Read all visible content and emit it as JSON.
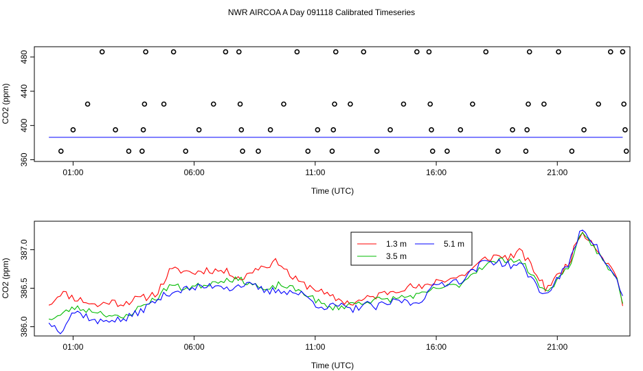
{
  "title": "NWR AIRCOA A  Day 091118  Calibrated Timeseries",
  "chart_data": [
    {
      "type": "scatter",
      "xlabel": "Time (UTC)",
      "ylabel": "CO2 (ppm)",
      "xlim": [
        -0.6,
        24.0
      ],
      "ylim": [
        358,
        492
      ],
      "x_ticks": [
        1,
        6,
        11,
        16,
        21
      ],
      "x_tick_labels": [
        "01:00",
        "06:00",
        "11:00",
        "16:00",
        "21:00"
      ],
      "y_ticks": [
        360,
        400,
        440,
        480
      ],
      "y_tick_labels": [
        "360",
        "400",
        "440",
        "480"
      ],
      "grid": false,
      "series": [
        {
          "color": "#0000ff",
          "style": "line",
          "x": [
            0,
            23.7
          ],
          "y": [
            386.2,
            386.2
          ]
        },
        {
          "color": "#000000",
          "style": "open-circle",
          "points": [
            [
              0.5,
              370
            ],
            [
              1.0,
              395
            ],
            [
              1.6,
              425
            ],
            [
              2.2,
              486
            ],
            [
              2.75,
              395
            ],
            [
              3.3,
              370
            ],
            [
              3.85,
              370
            ],
            [
              3.9,
              395
            ],
            [
              3.95,
              425
            ],
            [
              4.0,
              486
            ],
            [
              4.75,
              425
            ],
            [
              5.15,
              486
            ],
            [
              5.65,
              370
            ],
            [
              6.2,
              395
            ],
            [
              6.8,
              425
            ],
            [
              7.3,
              486
            ],
            [
              7.85,
              486
            ],
            [
              7.9,
              425
            ],
            [
              7.95,
              395
            ],
            [
              8.0,
              370
            ],
            [
              8.65,
              370
            ],
            [
              9.15,
              395
            ],
            [
              9.7,
              425
            ],
            [
              10.25,
              486
            ],
            [
              10.7,
              370
            ],
            [
              11.1,
              395
            ],
            [
              11.7,
              370
            ],
            [
              11.75,
              395
            ],
            [
              11.8,
              425
            ],
            [
              11.85,
              486
            ],
            [
              12.45,
              425
            ],
            [
              13.0,
              486
            ],
            [
              13.55,
              370
            ],
            [
              14.1,
              395
            ],
            [
              14.65,
              425
            ],
            [
              15.2,
              486
            ],
            [
              15.7,
              486
            ],
            [
              15.75,
              425
            ],
            [
              15.8,
              395
            ],
            [
              15.85,
              370
            ],
            [
              16.45,
              370
            ],
            [
              17.0,
              395
            ],
            [
              17.5,
              425
            ],
            [
              18.05,
              486
            ],
            [
              18.55,
              370
            ],
            [
              19.15,
              395
            ],
            [
              19.7,
              370
            ],
            [
              19.75,
              395
            ],
            [
              19.8,
              425
            ],
            [
              19.85,
              486
            ],
            [
              20.45,
              425
            ],
            [
              21.05,
              486
            ],
            [
              21.6,
              370
            ],
            [
              22.1,
              395
            ],
            [
              22.7,
              425
            ],
            [
              23.2,
              486
            ],
            [
              23.7,
              486
            ],
            [
              23.75,
              425
            ],
            [
              23.8,
              395
            ],
            [
              23.85,
              370
            ]
          ]
        }
      ]
    },
    {
      "type": "line",
      "xlabel": "Time (UTC)",
      "ylabel": "CO2 (ppm)",
      "xlim": [
        -0.6,
        24.0
      ],
      "ylim": [
        385.88,
        387.37
      ],
      "x_ticks": [
        1,
        6,
        11,
        16,
        21
      ],
      "x_tick_labels": [
        "01:00",
        "06:00",
        "11:00",
        "16:00",
        "21:00"
      ],
      "y_ticks": [
        386.0,
        386.5,
        387.0
      ],
      "y_tick_labels": [
        "386.0",
        "386.5",
        "387.0"
      ],
      "grid": false,
      "legend": "top-center",
      "series": [
        {
          "name": "1.3 m",
          "color": "#ff0000",
          "anchors": [
            [
              0,
              386.28
            ],
            [
              0.5,
              386.45
            ],
            [
              1.0,
              386.38
            ],
            [
              1.5,
              386.33
            ],
            [
              2.0,
              386.27
            ],
            [
              2.5,
              386.33
            ],
            [
              3.0,
              386.3
            ],
            [
              3.5,
              386.35
            ],
            [
              4.0,
              386.38
            ],
            [
              4.5,
              386.45
            ],
            [
              5.0,
              386.73
            ],
            [
              5.5,
              386.73
            ],
            [
              6.0,
              386.7
            ],
            [
              6.5,
              386.74
            ],
            [
              7.0,
              386.73
            ],
            [
              7.5,
              386.7
            ],
            [
              8.0,
              386.62
            ],
            [
              8.5,
              386.75
            ],
            [
              9.0,
              386.8
            ],
            [
              9.5,
              386.85
            ],
            [
              10.0,
              386.65
            ],
            [
              10.5,
              386.55
            ],
            [
              11.0,
              386.5
            ],
            [
              11.5,
              386.4
            ],
            [
              12.0,
              386.35
            ],
            [
              12.5,
              386.3
            ],
            [
              13.0,
              386.35
            ],
            [
              13.5,
              386.4
            ],
            [
              14.0,
              386.45
            ],
            [
              14.5,
              386.5
            ],
            [
              15.0,
              386.52
            ],
            [
              15.5,
              386.5
            ],
            [
              16.0,
              386.6
            ],
            [
              16.5,
              386.62
            ],
            [
              17.0,
              386.65
            ],
            [
              17.5,
              386.75
            ],
            [
              18.0,
              386.88
            ],
            [
              18.5,
              386.92
            ],
            [
              19.0,
              386.9
            ],
            [
              19.5,
              386.98
            ],
            [
              20.0,
              386.75
            ],
            [
              20.5,
              386.5
            ],
            [
              21.0,
              386.65
            ],
            [
              21.5,
              386.85
            ],
            [
              22.0,
              387.25
            ],
            [
              22.5,
              387.08
            ],
            [
              23.0,
              386.85
            ],
            [
              23.5,
              386.65
            ],
            [
              23.7,
              386.27
            ]
          ],
          "noise": 0.05,
          "seed": 11
        },
        {
          "name": "3.5 m",
          "color": "#00bb00",
          "anchors": [
            [
              0,
              386.1
            ],
            [
              0.5,
              386.15
            ],
            [
              1.0,
              386.25
            ],
            [
              1.5,
              386.22
            ],
            [
              2.0,
              386.2
            ],
            [
              2.5,
              386.15
            ],
            [
              3.0,
              386.1
            ],
            [
              3.5,
              386.2
            ],
            [
              4.0,
              386.3
            ],
            [
              4.5,
              386.38
            ],
            [
              5.0,
              386.55
            ],
            [
              5.5,
              386.5
            ],
            [
              6.0,
              386.52
            ],
            [
              6.5,
              386.55
            ],
            [
              7.0,
              386.6
            ],
            [
              7.5,
              386.62
            ],
            [
              8.0,
              386.6
            ],
            [
              8.5,
              386.55
            ],
            [
              9.0,
              386.45
            ],
            [
              9.5,
              386.55
            ],
            [
              10.0,
              386.5
            ],
            [
              10.5,
              386.45
            ],
            [
              11.0,
              386.35
            ],
            [
              11.5,
              386.25
            ],
            [
              12.0,
              386.25
            ],
            [
              12.5,
              386.3
            ],
            [
              13.0,
              386.32
            ],
            [
              13.5,
              386.35
            ],
            [
              14.0,
              386.35
            ],
            [
              14.5,
              386.38
            ],
            [
              15.0,
              386.4
            ],
            [
              15.5,
              386.42
            ],
            [
              16.0,
              386.5
            ],
            [
              16.5,
              386.52
            ],
            [
              17.0,
              386.55
            ],
            [
              17.5,
              386.7
            ],
            [
              18.0,
              386.8
            ],
            [
              18.5,
              386.85
            ],
            [
              19.0,
              386.88
            ],
            [
              19.5,
              386.85
            ],
            [
              20.0,
              386.65
            ],
            [
              20.5,
              386.45
            ],
            [
              21.0,
              386.6
            ],
            [
              21.5,
              386.8
            ],
            [
              22.0,
              387.2
            ],
            [
              22.5,
              387.05
            ],
            [
              23.0,
              386.8
            ],
            [
              23.5,
              386.6
            ],
            [
              23.7,
              386.3
            ]
          ],
          "noise": 0.04,
          "seed": 23
        },
        {
          "name": "5.1 m",
          "color": "#0000ff",
          "anchors": [
            [
              0,
              386.05
            ],
            [
              0.5,
              385.95
            ],
            [
              1.0,
              386.2
            ],
            [
              1.5,
              386.15
            ],
            [
              2.0,
              386.05
            ],
            [
              2.5,
              386.1
            ],
            [
              3.0,
              386.08
            ],
            [
              3.5,
              386.15
            ],
            [
              4.0,
              386.25
            ],
            [
              4.5,
              386.35
            ],
            [
              5.0,
              386.45
            ],
            [
              5.5,
              386.48
            ],
            [
              6.0,
              386.5
            ],
            [
              6.5,
              386.52
            ],
            [
              7.0,
              386.55
            ],
            [
              7.5,
              386.5
            ],
            [
              8.0,
              386.55
            ],
            [
              8.5,
              386.52
            ],
            [
              9.0,
              386.45
            ],
            [
              9.5,
              386.48
            ],
            [
              10.0,
              386.45
            ],
            [
              10.5,
              386.42
            ],
            [
              11.0,
              386.3
            ],
            [
              11.5,
              386.25
            ],
            [
              12.0,
              386.28
            ],
            [
              12.5,
              386.2
            ],
            [
              13.0,
              386.3
            ],
            [
              13.5,
              386.25
            ],
            [
              14.0,
              386.3
            ],
            [
              14.5,
              386.35
            ],
            [
              15.0,
              386.3
            ],
            [
              15.5,
              386.38
            ],
            [
              16.0,
              386.55
            ],
            [
              16.5,
              386.58
            ],
            [
              17.0,
              386.6
            ],
            [
              17.5,
              386.72
            ],
            [
              18.0,
              386.85
            ],
            [
              18.5,
              386.85
            ],
            [
              19.0,
              386.8
            ],
            [
              19.5,
              386.8
            ],
            [
              20.0,
              386.6
            ],
            [
              20.5,
              386.4
            ],
            [
              21.0,
              386.62
            ],
            [
              21.5,
              386.82
            ],
            [
              22.0,
              387.3
            ],
            [
              22.5,
              387.1
            ],
            [
              23.0,
              386.82
            ],
            [
              23.5,
              386.58
            ],
            [
              23.7,
              386.4
            ]
          ],
          "noise": 0.05,
          "seed": 37
        }
      ]
    }
  ]
}
